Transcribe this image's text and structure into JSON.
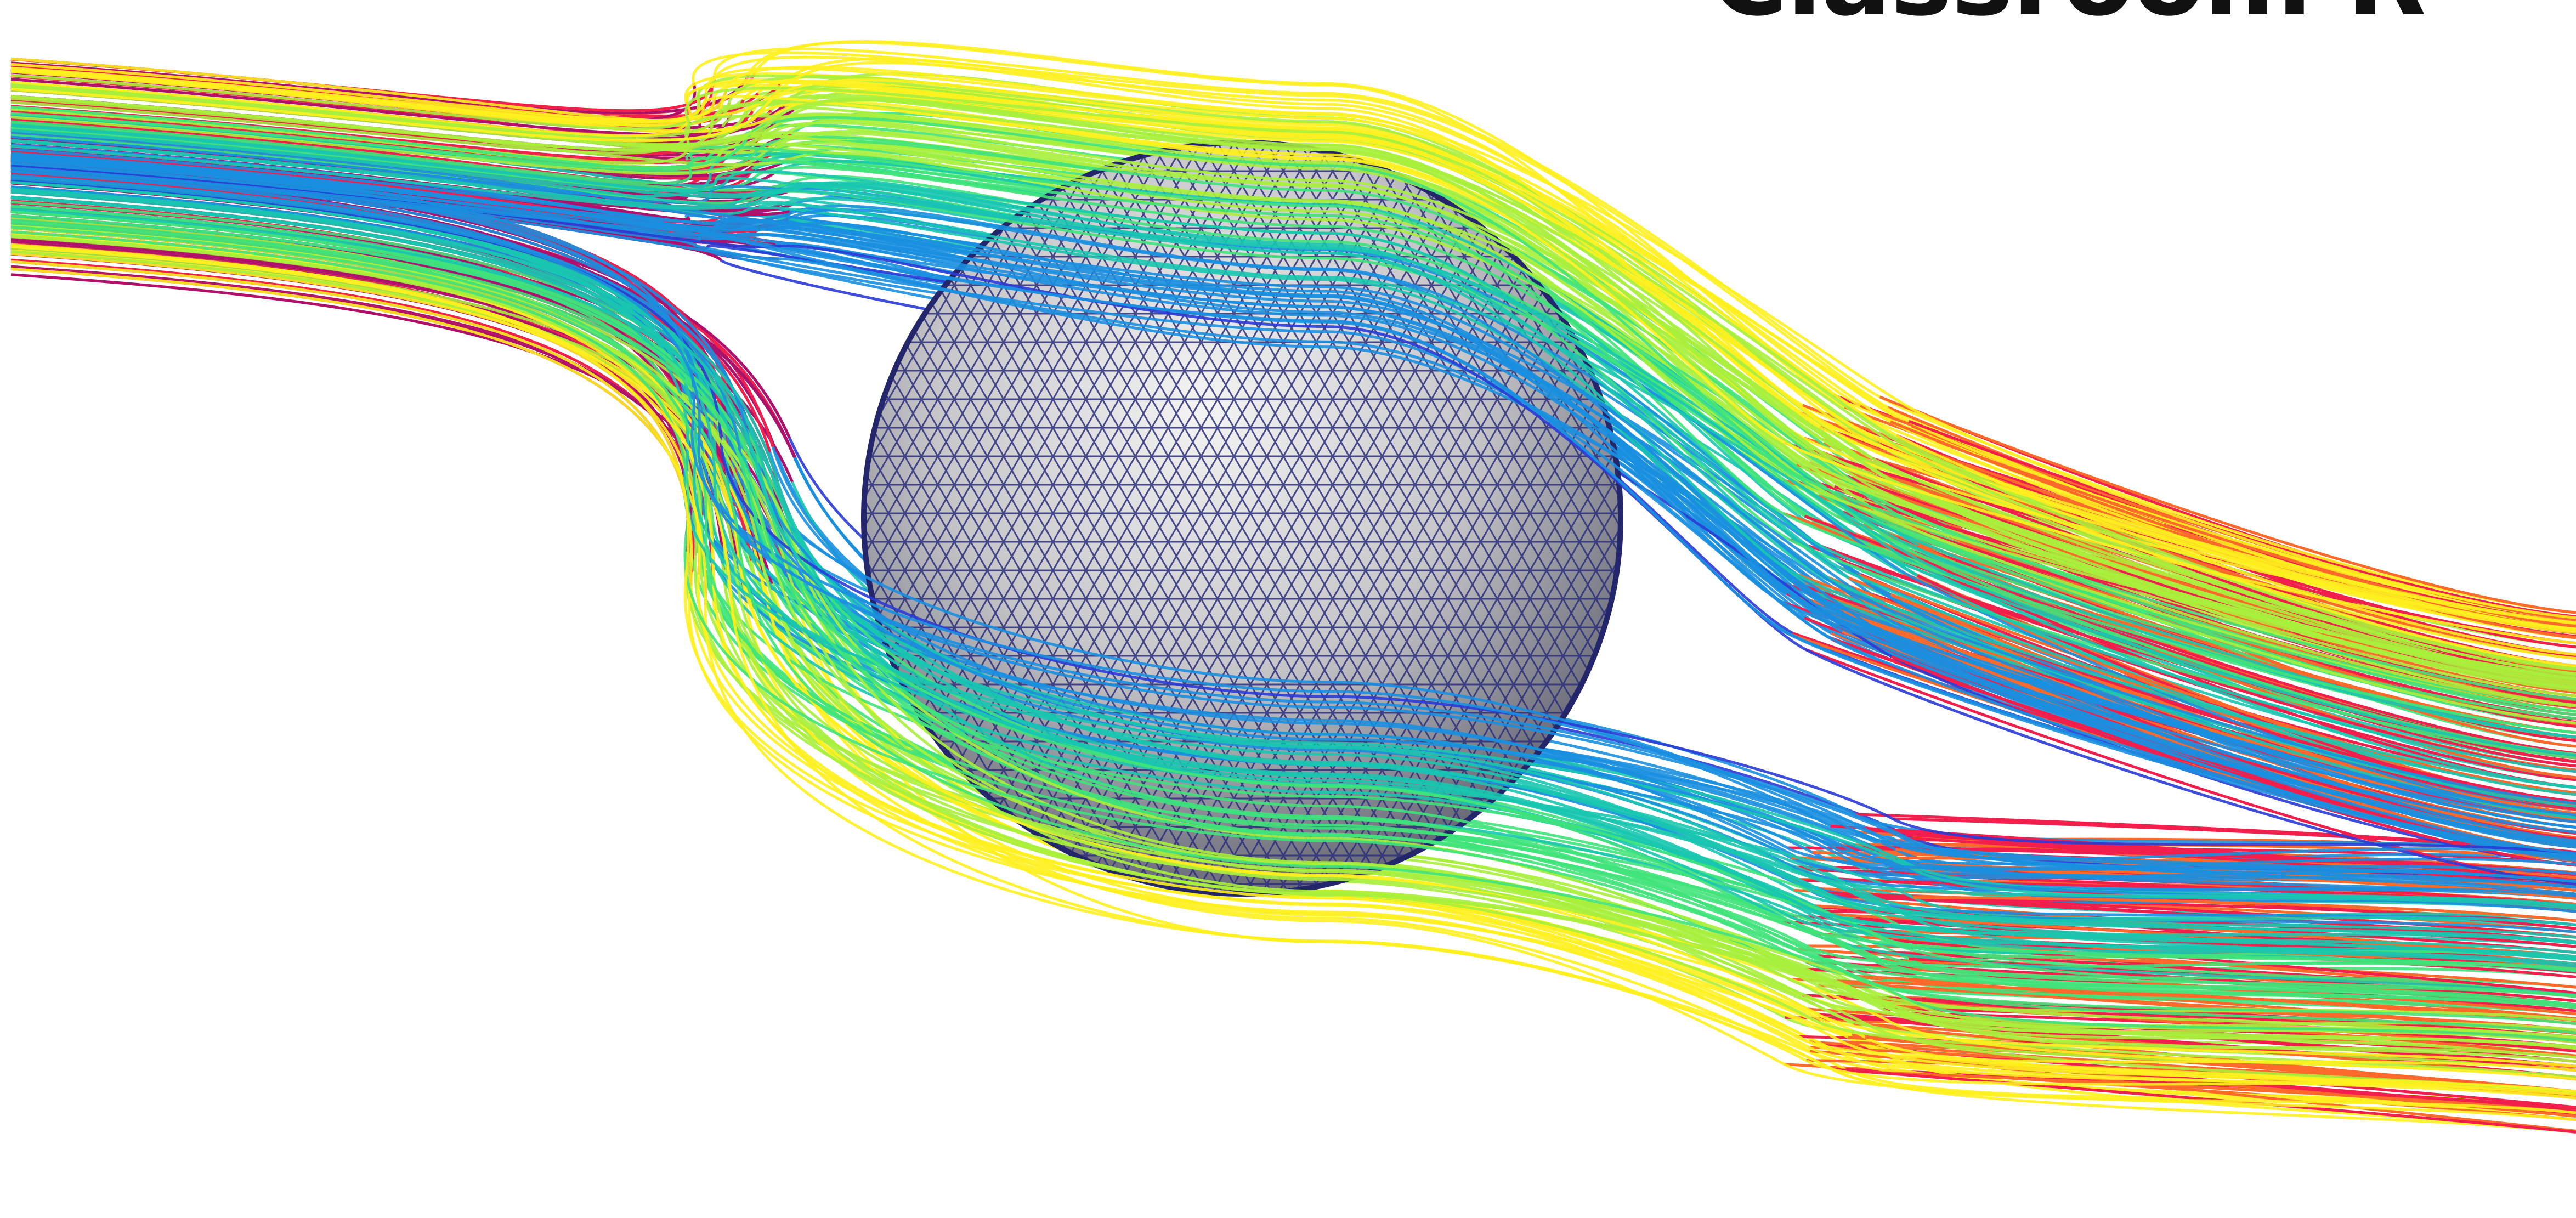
{
  "visual": {
    "title_fragment": "Classroom R",
    "sphere_fill": "#c9c9cc",
    "sphere_mesh_color": "#2c2f7a",
    "colormap": [
      "#2a3bd6",
      "#1a8fe0",
      "#18c7b0",
      "#3fe37a",
      "#a8f03c",
      "#fff01e",
      "#ffb42a",
      "#ff6a2a",
      "#f21e4c",
      "#b0106b"
    ]
  }
}
